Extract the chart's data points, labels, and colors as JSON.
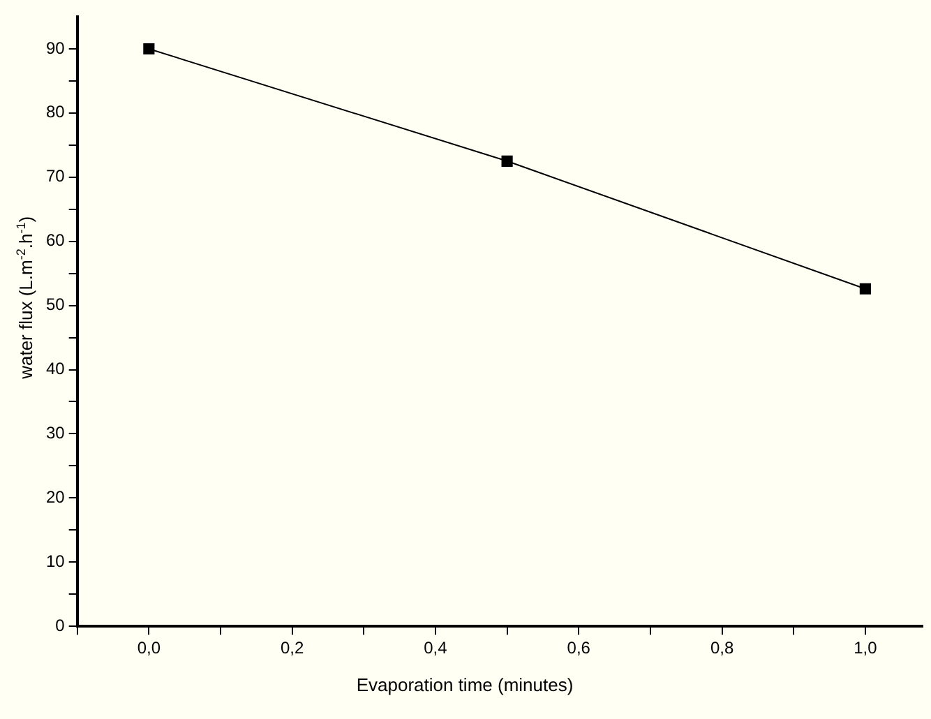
{
  "chart_data": {
    "type": "line",
    "xlabel": "Evaporation time (minutes)",
    "ylabel": "water flux (L.m$^{-2}$.h$^{-1}$)",
    "x": [
      0,
      0.5,
      1.0
    ],
    "series": [
      {
        "color": "#000000",
        "values": [
          90,
          72.5,
          52.6
        ]
      }
    ],
    "xlim": [
      -0.1,
      1.08
    ],
    "xticks": [
      {
        "value": -0.1,
        "label": null
      },
      {
        "value": 0,
        "label": "0,0"
      },
      {
        "value": 0.1,
        "label": null
      },
      {
        "value": 0.2,
        "label": "0,2"
      },
      {
        "value": 0.3,
        "label": null
      },
      {
        "value": 0.4,
        "label": "0,4"
      },
      {
        "value": 0.5,
        "label": null
      },
      {
        "value": 0.6,
        "label": "0,6"
      },
      {
        "value": 0.7,
        "label": null
      },
      {
        "value": 0.8,
        "label": "0,8"
      },
      {
        "value": 0.9,
        "label": null
      },
      {
        "value": 1.0,
        "label": "1,0"
      }
    ],
    "ylim": [
      0,
      95
    ],
    "yticks": [
      0,
      {
        "value": 5,
        "label": null
      },
      10,
      {
        "value": 15,
        "label": null
      },
      20,
      {
        "value": 25,
        "label": null
      },
      30,
      {
        "value": 35,
        "label": null
      },
      40,
      {
        "value": 45,
        "label": null
      },
      50,
      {
        "value": 55,
        "label": null
      },
      60,
      {
        "value": 65,
        "label": null
      },
      70,
      {
        "value": 75,
        "label": null
      },
      80,
      {
        "value": 85,
        "label": null
      },
      90
    ],
    "marker": "square",
    "line_style": "solid",
    "legend": false,
    "grid": false
  }
}
